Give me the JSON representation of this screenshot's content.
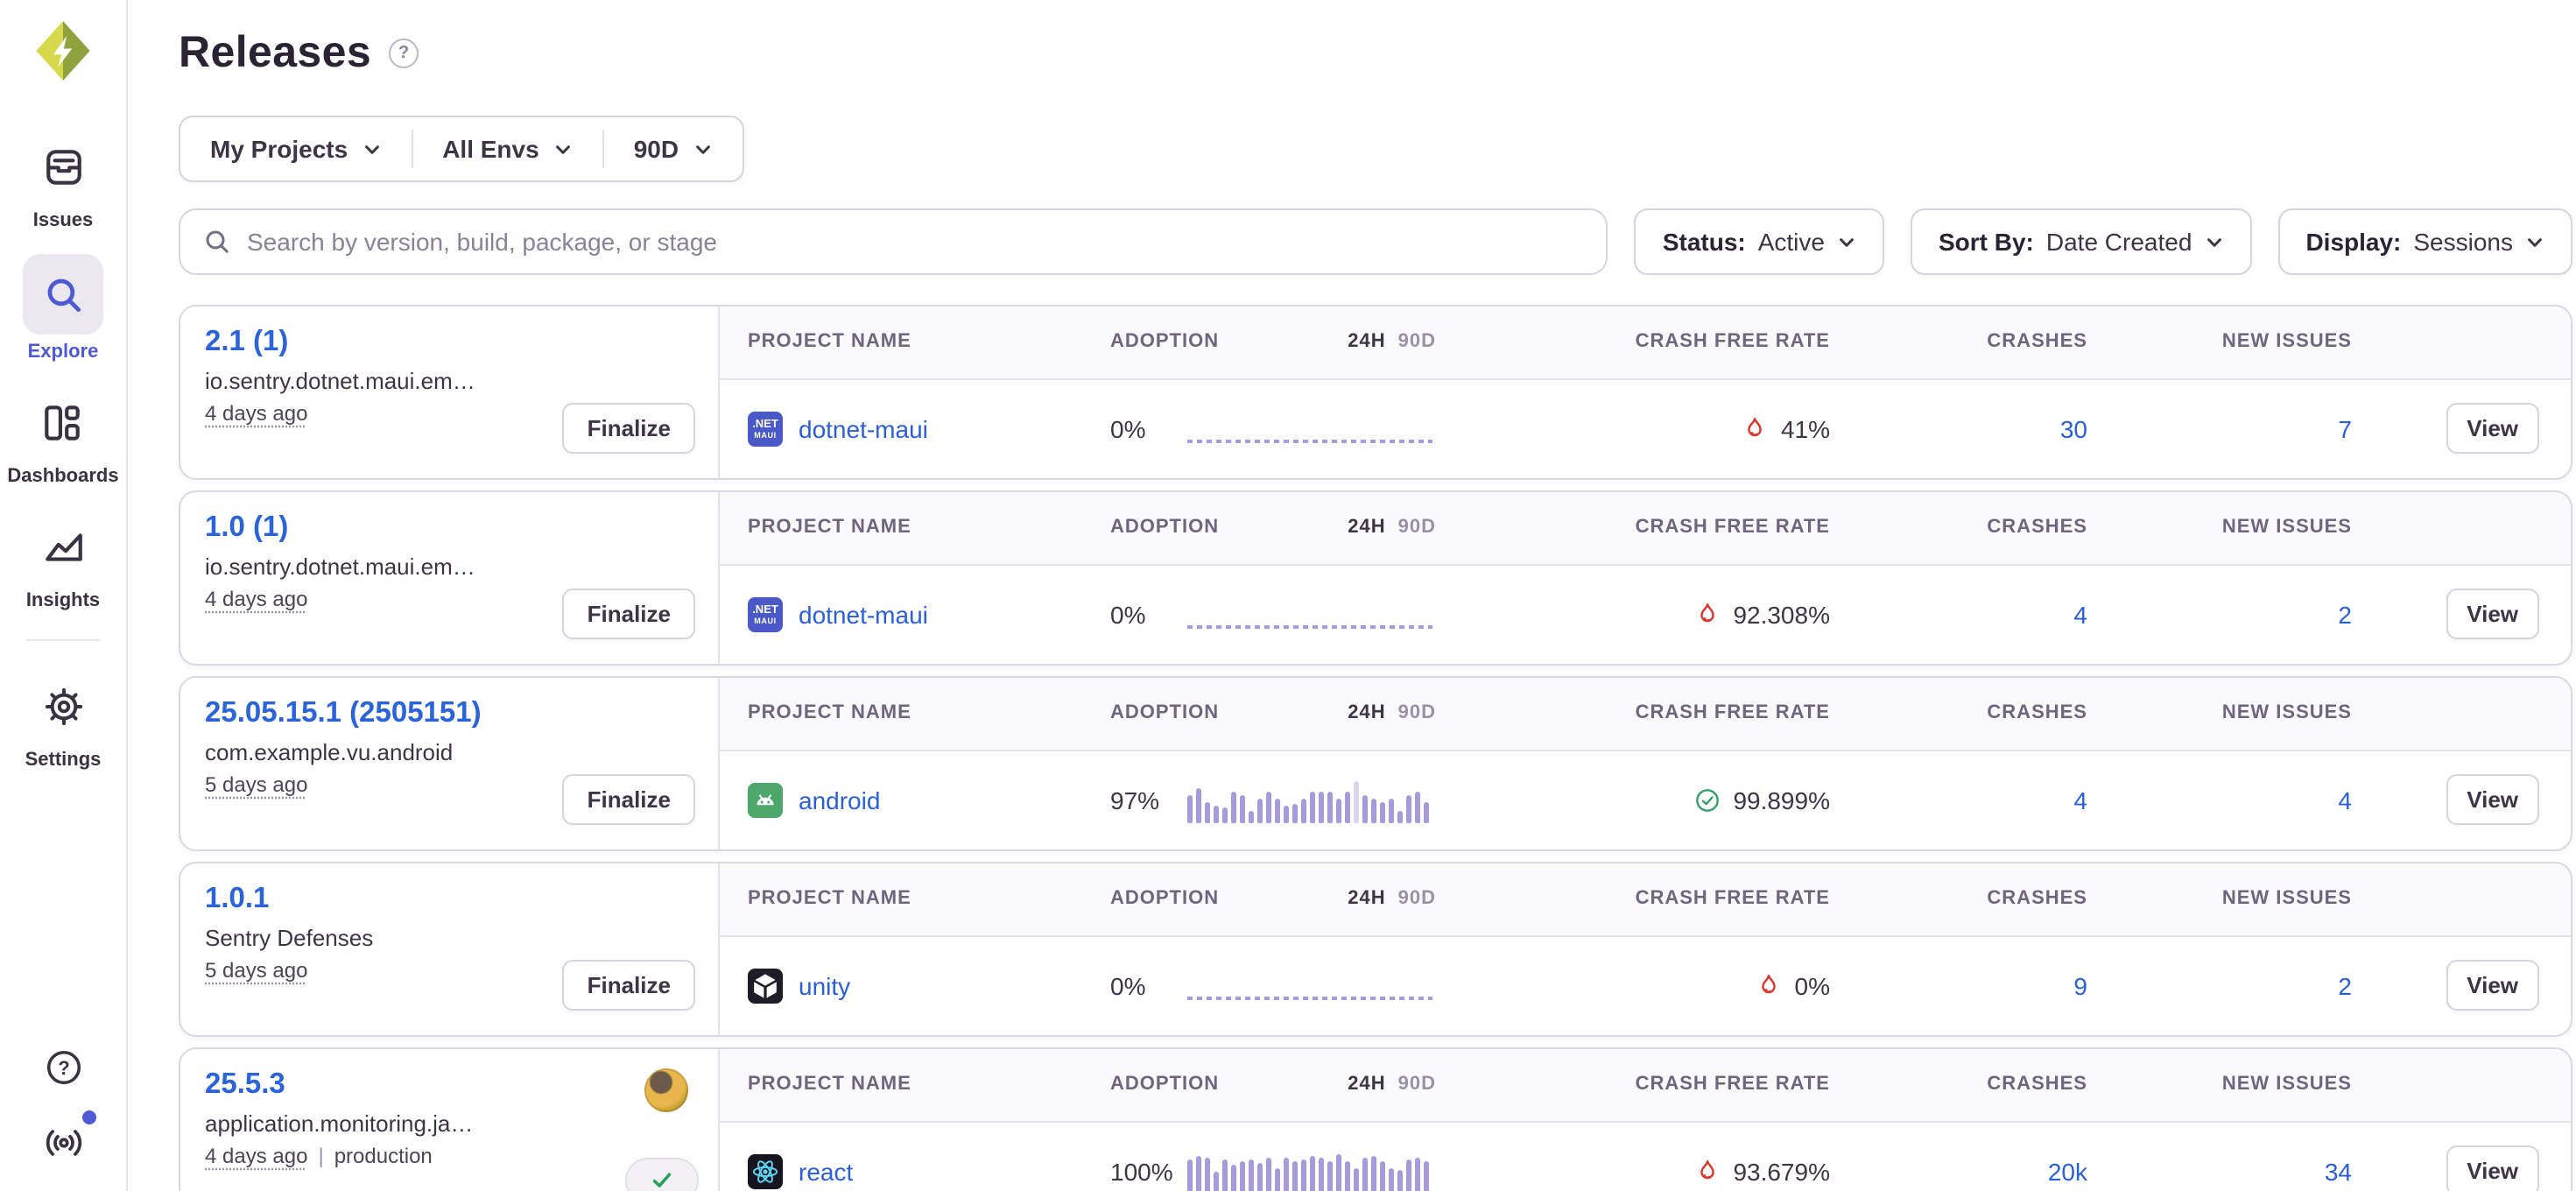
{
  "header": {
    "title": "Releases",
    "help_glyph": "?"
  },
  "sidebar": {
    "items": [
      {
        "label": "Issues",
        "icon": "issues-icon",
        "active": false
      },
      {
        "label": "Explore",
        "icon": "search-icon",
        "active": true
      },
      {
        "label": "Dashboards",
        "icon": "dashboards-icon",
        "active": false
      },
      {
        "label": "Insights",
        "icon": "insights-icon",
        "active": false
      },
      {
        "label": "Settings",
        "icon": "gear-icon",
        "active": false
      }
    ],
    "footer_items": [
      {
        "icon": "help-icon"
      },
      {
        "icon": "broadcast-icon",
        "notification": true
      }
    ]
  },
  "filters": {
    "project": "My Projects",
    "env": "All Envs",
    "period": "90D"
  },
  "search": {
    "placeholder": "Search by version, build, package, or stage"
  },
  "controls": [
    {
      "label": "Status:",
      "value": "Active"
    },
    {
      "label": "Sort By:",
      "value": "Date Created"
    },
    {
      "label": "Display:",
      "value": "Sessions"
    }
  ],
  "table": {
    "headers": {
      "project": "PROJECT NAME",
      "adoption": "ADOPTION",
      "h24": "24H",
      "d90": "90D",
      "crash_free": "CRASH FREE RATE",
      "crashes": "CRASHES",
      "new_issues": "NEW ISSUES"
    }
  },
  "releases": [
    {
      "version": "2.1 (1)",
      "package": "io.sentry.dotnet.maui.em…",
      "age": "4 days ago",
      "env": "",
      "action": "Finalize",
      "author_avatar": false,
      "approved": false,
      "project": {
        "name": "dotnet-maui",
        "icon": "dotnet-maui"
      },
      "adoption": "0%",
      "chart": {
        "type": "dashed"
      },
      "crash_free": {
        "value": "41%",
        "status": "bad"
      },
      "crashes": "30",
      "new_issues": "7",
      "view_label": "View"
    },
    {
      "version": "1.0 (1)",
      "package": "io.sentry.dotnet.maui.em…",
      "age": "4 days ago",
      "env": "",
      "action": "Finalize",
      "author_avatar": false,
      "approved": false,
      "project": {
        "name": "dotnet-maui",
        "icon": "dotnet-maui"
      },
      "adoption": "0%",
      "chart": {
        "type": "dashed"
      },
      "crash_free": {
        "value": "92.308%",
        "status": "bad"
      },
      "crashes": "4",
      "new_issues": "2",
      "view_label": "View"
    },
    {
      "version": "25.05.15.1 (2505151)",
      "package": "com.example.vu.android",
      "age": "5 days ago",
      "env": "",
      "action": "Finalize",
      "author_avatar": false,
      "approved": false,
      "project": {
        "name": "android",
        "icon": "android"
      },
      "adoption": "97%",
      "chart": {
        "type": "bars",
        "values": [
          16,
          20,
          12,
          10,
          9,
          18,
          16,
          7,
          14,
          18,
          14,
          10,
          11,
          14,
          18,
          18,
          18,
          14,
          18,
          24,
          16,
          14,
          12,
          14,
          7,
          16,
          18,
          12
        ],
        "muted_index": 19
      },
      "crash_free": {
        "value": "99.899%",
        "status": "good"
      },
      "crashes": "4",
      "new_issues": "4",
      "view_label": "View"
    },
    {
      "version": "1.0.1",
      "package": "Sentry Defenses",
      "age": "5 days ago",
      "env": "",
      "action": "Finalize",
      "author_avatar": false,
      "approved": false,
      "project": {
        "name": "unity",
        "icon": "unity"
      },
      "adoption": "0%",
      "chart": {
        "type": "dashed"
      },
      "crash_free": {
        "value": "0%",
        "status": "bad"
      },
      "crashes": "9",
      "new_issues": "2",
      "view_label": "View"
    },
    {
      "version": "25.5.3",
      "package": "application.monitoring.ja…",
      "age": "4 days ago",
      "env": "production",
      "action": "",
      "author_avatar": true,
      "approved": true,
      "project": {
        "name": "react",
        "icon": "react"
      },
      "adoption": "100%",
      "chart": {
        "type": "bars",
        "values": [
          20,
          22,
          21,
          13,
          20,
          17,
          19,
          20,
          18,
          21,
          15,
          21,
          19,
          20,
          22,
          21,
          19,
          23,
          19,
          15,
          21,
          22,
          19,
          15,
          14,
          20,
          21,
          19
        ]
      },
      "crash_free": {
        "value": "93.679%",
        "status": "bad"
      },
      "crashes": "20k",
      "new_issues": "34",
      "view_label": "View"
    }
  ],
  "colors": {
    "link_blue": "#2B5FD9",
    "nav_active": "#4E5AD3",
    "bar_purple": "#A79BDC",
    "fire_red": "#DC342B",
    "success_green": "#35A06B",
    "logo_light": "#D6D94B",
    "logo_dark": "#8FA23E"
  }
}
